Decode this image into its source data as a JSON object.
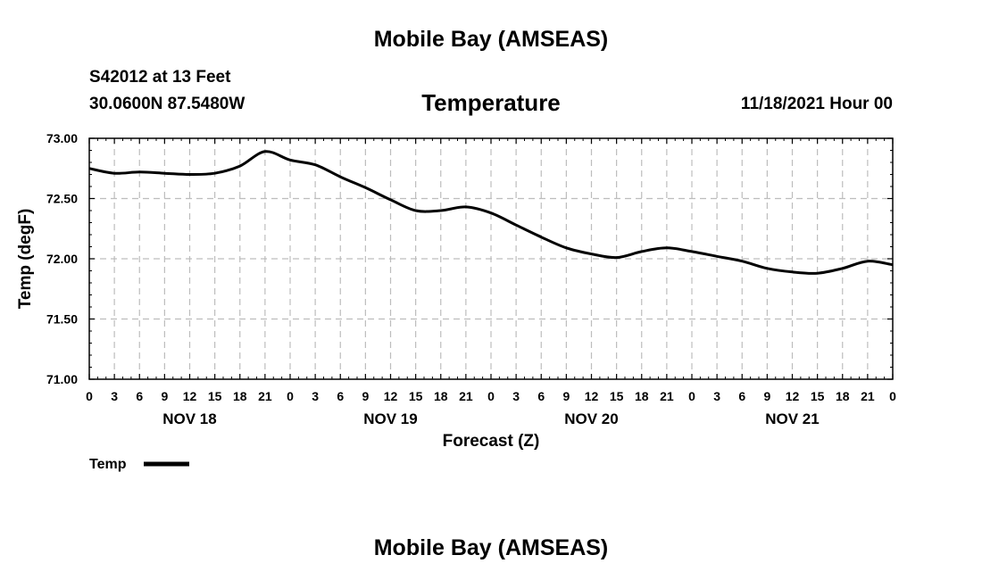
{
  "header": {
    "title": "Mobile Bay (AMSEAS)",
    "station_line": "S42012 at 13 Feet",
    "coords": "30.0600N  87.5480W",
    "datetime": "11/18/2021 Hour 00",
    "footer_title": "Mobile Bay (AMSEAS)"
  },
  "chart_data": {
    "type": "line",
    "title": "Temperature",
    "xlabel": "Forecast (Z)",
    "ylabel": "Temp (degF)",
    "ylim": [
      71.0,
      73.0
    ],
    "xlim": [
      0,
      96
    ],
    "x_unit": "hours from 11/18/2021 00Z",
    "y_ticks": [
      "71.00",
      "71.50",
      "72.00",
      "72.50",
      "73.00"
    ],
    "x_tick_labels": [
      "0",
      "3",
      "6",
      "9",
      "12",
      "15",
      "18",
      "21",
      "0",
      "3",
      "6",
      "9",
      "12",
      "15",
      "18",
      "21",
      "0",
      "3",
      "6",
      "9",
      "12",
      "15",
      "18",
      "21",
      "0",
      "3",
      "6",
      "9",
      "12",
      "15",
      "18",
      "21",
      "0"
    ],
    "day_labels": [
      {
        "label": "NOV 18",
        "hour": 12
      },
      {
        "label": "NOV 19",
        "hour": 36
      },
      {
        "label": "NOV 20",
        "hour": 60
      },
      {
        "label": "NOV 21",
        "hour": 84
      }
    ],
    "grid": true,
    "legend": "bottom-left",
    "series": [
      {
        "name": "Temp",
        "x": [
          0,
          3,
          6,
          9,
          12,
          15,
          18,
          21,
          24,
          27,
          30,
          33,
          36,
          39,
          42,
          45,
          48,
          51,
          54,
          57,
          60,
          63,
          66,
          69,
          72,
          75,
          78,
          81,
          84,
          87,
          90,
          93,
          96
        ],
        "y": [
          72.75,
          72.71,
          72.72,
          72.71,
          72.7,
          72.71,
          72.77,
          72.89,
          72.82,
          72.78,
          72.68,
          72.59,
          72.49,
          72.4,
          72.4,
          72.43,
          72.38,
          72.28,
          72.18,
          72.09,
          72.04,
          72.01,
          72.06,
          72.09,
          72.06,
          72.02,
          71.98,
          71.92,
          71.89,
          71.88,
          71.92,
          71.98,
          71.95
        ]
      }
    ]
  }
}
